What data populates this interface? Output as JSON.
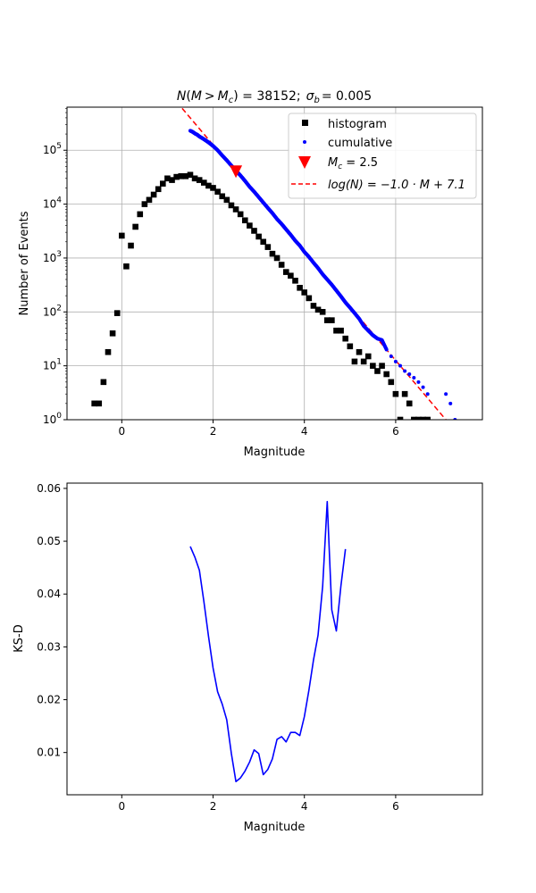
{
  "chart_data": [
    {
      "type": "scatter",
      "title": "N(M > M_c) = 38152;  σ_b = 0.005",
      "title_parts": {
        "n_lhs": "N",
        "m1": "M",
        "op": ">",
        "m2": "M",
        "sub": "c",
        "eq": "= 38152;",
        "sigma": "σ",
        "sigma_sub": "b",
        "sigma_val": "= 0.005"
      },
      "xlabel": "Magnitude",
      "ylabel": "Number of Events",
      "xlim": [
        -1.2,
        7.9
      ],
      "ylim": [
        1,
        630000
      ],
      "yscale": "log",
      "grid": true,
      "legend_placement": "top-right",
      "x_ticks": [
        0,
        2,
        4,
        6
      ],
      "y_ticks": [
        1,
        10,
        100,
        1000,
        10000,
        100000
      ],
      "y_tick_labels": [
        {
          "base": "10",
          "exp": "0"
        },
        {
          "base": "10",
          "exp": "1"
        },
        {
          "base": "10",
          "exp": "2"
        },
        {
          "base": "10",
          "exp": "3"
        },
        {
          "base": "10",
          "exp": "4"
        },
        {
          "base": "10",
          "exp": "5"
        }
      ],
      "legend": [
        {
          "key": "histogram",
          "label": "histogram",
          "color": "#000000",
          "marker": "square"
        },
        {
          "key": "cumulative",
          "label": "cumulative",
          "color": "#0000ff",
          "marker": "dot"
        },
        {
          "key": "mc",
          "label": "M_c = 2.5",
          "label_parts": {
            "m": "M",
            "sub": "c",
            "rest": " = 2.5"
          },
          "color": "#ff0000",
          "marker": "triangle-down"
        },
        {
          "key": "fit",
          "label": "log(N) = −1.0 · M + 7.1",
          "label_parts": {
            "text": "log(N) = −1.0 · M + 7.1"
          },
          "color": "#ff0000",
          "marker": "dashed-line"
        }
      ],
      "series": [
        {
          "name": "histogram",
          "color": "#000000",
          "x": [
            -0.6,
            -0.5,
            -0.4,
            -0.3,
            -0.2,
            -0.1,
            0.0,
            0.1,
            0.2,
            0.3,
            0.4,
            0.5,
            0.6,
            0.7,
            0.8,
            0.9,
            1.0,
            1.1,
            1.2,
            1.3,
            1.4,
            1.5,
            1.6,
            1.7,
            1.8,
            1.9,
            2.0,
            2.1,
            2.2,
            2.3,
            2.4,
            2.5,
            2.6,
            2.7,
            2.8,
            2.9,
            3.0,
            3.1,
            3.2,
            3.3,
            3.4,
            3.5,
            3.6,
            3.7,
            3.8,
            3.9,
            4.0,
            4.1,
            4.2,
            4.3,
            4.4,
            4.5,
            4.6,
            4.7,
            4.8,
            4.9,
            5.0,
            5.1,
            5.2,
            5.3,
            5.4,
            5.5,
            5.6,
            5.7,
            5.8,
            5.9,
            6.0,
            6.1,
            6.2,
            6.3,
            6.4,
            6.5,
            6.6,
            6.7
          ],
          "values": [
            2,
            2,
            5,
            18,
            40,
            95,
            2600,
            700,
            1700,
            3800,
            6500,
            10000,
            12000,
            15000,
            19000,
            24000,
            30000,
            28000,
            32000,
            33000,
            33000,
            35000,
            30000,
            28000,
            25000,
            22000,
            20000,
            17000,
            14000,
            12000,
            9500,
            8000,
            6500,
            5000,
            4000,
            3200,
            2500,
            2000,
            1600,
            1200,
            1000,
            750,
            550,
            470,
            380,
            280,
            230,
            180,
            130,
            110,
            100,
            70,
            70,
            45,
            45,
            32,
            23,
            12,
            18,
            12,
            15,
            10,
            8,
            10,
            7,
            5,
            3,
            1,
            3,
            2,
            1,
            1,
            1,
            1
          ]
        },
        {
          "name": "cumulative",
          "color": "#0000ff",
          "x": [
            1.5,
            1.55,
            1.6,
            1.65,
            1.7,
            1.75,
            1.8,
            1.85,
            1.9,
            1.95,
            2.0,
            2.1,
            2.2,
            2.3,
            2.4,
            2.5,
            2.6,
            2.7,
            2.8,
            2.9,
            3.0,
            3.1,
            3.2,
            3.3,
            3.4,
            3.5,
            3.6,
            3.7,
            3.8,
            3.9,
            4.0,
            4.1,
            4.2,
            4.3,
            4.4,
            4.5,
            4.6,
            4.7,
            4.8,
            4.9,
            5.0,
            5.1,
            5.2,
            5.3,
            5.4,
            5.5,
            5.6,
            5.7,
            5.8,
            5.9,
            6.0,
            6.1,
            6.2,
            6.3,
            6.4,
            6.5,
            6.6,
            6.7,
            7.1,
            7.2,
            7.3
          ],
          "values": [
            230000,
            220000,
            205000,
            195000,
            180000,
            170000,
            160000,
            150000,
            140000,
            130000,
            120000,
            100000,
            80000,
            65000,
            52000,
            42000,
            34000,
            27000,
            21000,
            17000,
            13500,
            10700,
            8500,
            6800,
            5300,
            4300,
            3400,
            2700,
            2100,
            1700,
            1300,
            1050,
            820,
            650,
            500,
            400,
            320,
            250,
            195,
            150,
            120,
            95,
            75,
            55,
            45,
            37,
            32,
            30,
            20,
            15,
            12,
            10,
            8,
            7,
            6,
            5,
            4,
            3,
            3,
            2,
            1
          ]
        },
        {
          "name": "M_c = 2.5",
          "color": "#ff0000",
          "x": [
            2.5
          ],
          "values": [
            40000
          ]
        },
        {
          "name": "log(N) = −1.0 · M + 7.1",
          "color": "#ff0000",
          "style": "dashed",
          "slope": -1.0,
          "intercept": 7.1
        }
      ]
    },
    {
      "type": "line",
      "title": "",
      "xlabel": "Magnitude",
      "ylabel": "KS-D",
      "xlim": [
        -1.2,
        7.9
      ],
      "ylim": [
        0.002,
        0.061
      ],
      "grid": false,
      "x_ticks": [
        0,
        2,
        4,
        6
      ],
      "y_ticks": [
        0.01,
        0.02,
        0.03,
        0.04,
        0.05,
        0.06
      ],
      "y_tick_labels": [
        "0.01",
        "0.02",
        "0.03",
        "0.04",
        "0.05",
        "0.06"
      ],
      "series": [
        {
          "name": "",
          "color": "#0000ff",
          "x": [
            1.5,
            1.6,
            1.7,
            1.8,
            1.9,
            2.0,
            2.1,
            2.2,
            2.3,
            2.4,
            2.5,
            2.6,
            2.7,
            2.8,
            2.9,
            3.0,
            3.1,
            3.2,
            3.3,
            3.4,
            3.5,
            3.6,
            3.7,
            3.8,
            3.9,
            4.0,
            4.1,
            4.2,
            4.3,
            4.4,
            4.5,
            4.6,
            4.7,
            4.8,
            4.9
          ],
          "values": [
            0.049,
            0.047,
            0.0445,
            0.0385,
            0.032,
            0.026,
            0.0215,
            0.0192,
            0.0162,
            0.0098,
            0.0045,
            0.0052,
            0.0065,
            0.0082,
            0.0105,
            0.0098,
            0.0058,
            0.0068,
            0.0088,
            0.0125,
            0.013,
            0.012,
            0.0138,
            0.0138,
            0.0132,
            0.0168,
            0.0218,
            0.0275,
            0.0322,
            0.0415,
            0.0575,
            0.037,
            0.033,
            0.0415,
            0.0485
          ]
        }
      ]
    }
  ]
}
